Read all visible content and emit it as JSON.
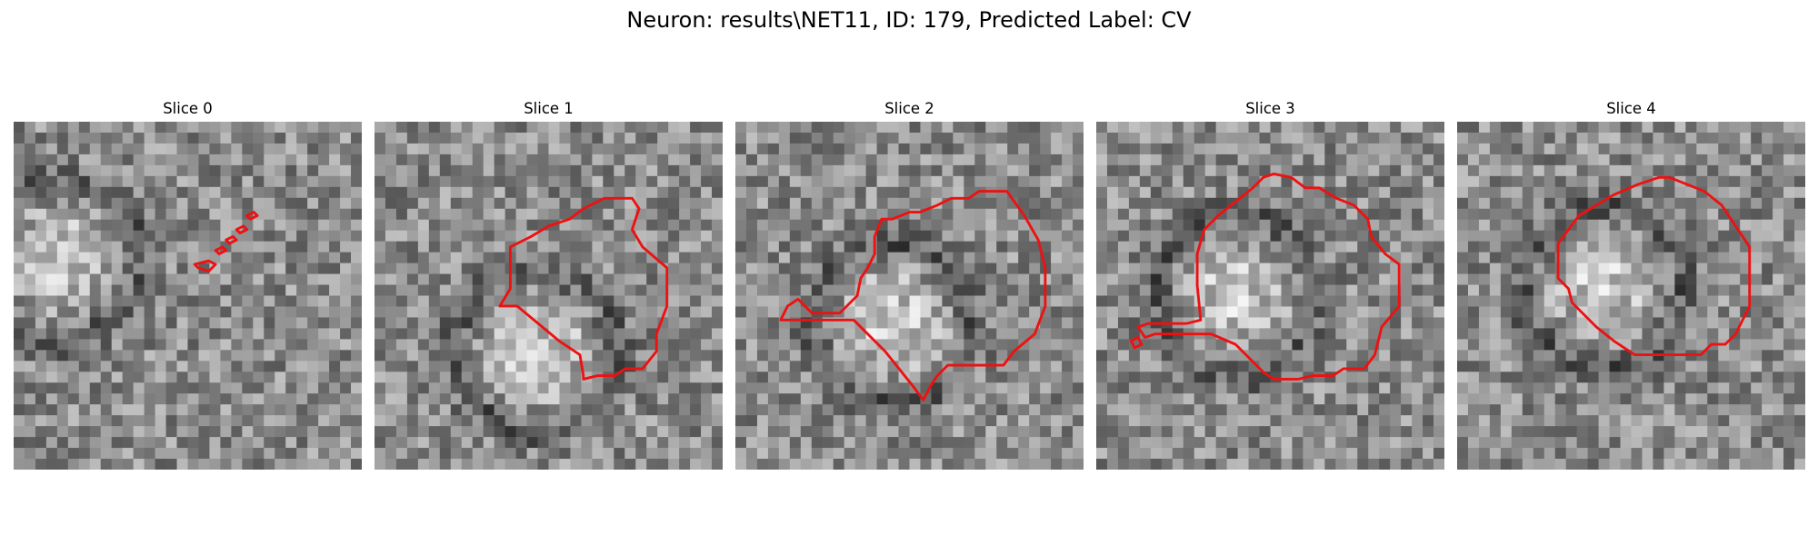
{
  "figure": {
    "title": "Neuron: results\\NET11, ID: 179, Predicted Label: CV"
  },
  "contour_color": "#ee1111",
  "panels": [
    {
      "title": "Slice 0",
      "seed": 11,
      "bright_center": [
        0.13,
        0.4
      ],
      "contours": [
        [
          [
            0.52,
            0.41
          ],
          [
            0.56,
            0.4
          ],
          [
            0.58,
            0.41
          ],
          [
            0.56,
            0.43
          ],
          [
            0.53,
            0.42
          ]
        ],
        [
          [
            0.58,
            0.37
          ],
          [
            0.6,
            0.36
          ],
          [
            0.61,
            0.37
          ],
          [
            0.59,
            0.38
          ]
        ],
        [
          [
            0.61,
            0.34
          ],
          [
            0.63,
            0.33
          ],
          [
            0.64,
            0.34
          ],
          [
            0.62,
            0.35
          ]
        ],
        [
          [
            0.64,
            0.31
          ],
          [
            0.66,
            0.3
          ],
          [
            0.67,
            0.31
          ],
          [
            0.65,
            0.32
          ]
        ],
        [
          [
            0.67,
            0.27
          ],
          [
            0.69,
            0.26
          ],
          [
            0.7,
            0.27
          ],
          [
            0.68,
            0.28
          ]
        ]
      ]
    },
    {
      "title": "Slice 1",
      "seed": 22,
      "bright_center": [
        0.47,
        0.66
      ],
      "contours": [
        [
          [
            0.39,
            0.36
          ],
          [
            0.45,
            0.33
          ],
          [
            0.5,
            0.3
          ],
          [
            0.56,
            0.28
          ],
          [
            0.6,
            0.25
          ],
          [
            0.66,
            0.22
          ],
          [
            0.74,
            0.22
          ],
          [
            0.76,
            0.25
          ],
          [
            0.74,
            0.31
          ],
          [
            0.77,
            0.36
          ],
          [
            0.84,
            0.42
          ],
          [
            0.84,
            0.53
          ],
          [
            0.81,
            0.61
          ],
          [
            0.81,
            0.66
          ],
          [
            0.77,
            0.71
          ],
          [
            0.72,
            0.71
          ],
          [
            0.69,
            0.73
          ],
          [
            0.64,
            0.73
          ],
          [
            0.6,
            0.74
          ],
          [
            0.6,
            0.73
          ],
          [
            0.59,
            0.67
          ],
          [
            0.53,
            0.63
          ],
          [
            0.47,
            0.58
          ],
          [
            0.41,
            0.53
          ],
          [
            0.39,
            0.53
          ],
          [
            0.36,
            0.53
          ],
          [
            0.39,
            0.48
          ],
          [
            0.39,
            0.4
          ]
        ]
      ]
    },
    {
      "title": "Slice 2",
      "seed": 33,
      "bright_center": [
        0.45,
        0.58
      ],
      "contours": [
        [
          [
            0.4,
            0.33
          ],
          [
            0.42,
            0.28
          ],
          [
            0.45,
            0.28
          ],
          [
            0.5,
            0.26
          ],
          [
            0.53,
            0.26
          ],
          [
            0.58,
            0.24
          ],
          [
            0.62,
            0.22
          ],
          [
            0.67,
            0.22
          ],
          [
            0.7,
            0.2
          ],
          [
            0.78,
            0.2
          ],
          [
            0.83,
            0.27
          ],
          [
            0.87,
            0.34
          ],
          [
            0.89,
            0.42
          ],
          [
            0.89,
            0.53
          ],
          [
            0.86,
            0.61
          ],
          [
            0.8,
            0.66
          ],
          [
            0.77,
            0.7
          ],
          [
            0.66,
            0.7
          ],
          [
            0.61,
            0.7
          ],
          [
            0.58,
            0.73
          ],
          [
            0.56,
            0.76
          ],
          [
            0.54,
            0.8
          ],
          [
            0.51,
            0.76
          ],
          [
            0.43,
            0.66
          ],
          [
            0.34,
            0.57
          ],
          [
            0.13,
            0.57
          ],
          [
            0.15,
            0.53
          ],
          [
            0.18,
            0.51
          ],
          [
            0.22,
            0.55
          ],
          [
            0.3,
            0.55
          ],
          [
            0.35,
            0.5
          ],
          [
            0.36,
            0.45
          ],
          [
            0.38,
            0.42
          ],
          [
            0.4,
            0.38
          ]
        ]
      ]
    },
    {
      "title": "Slice 3",
      "seed": 44,
      "bright_center": [
        0.4,
        0.5
      ],
      "contours": [
        [
          [
            0.29,
            0.38
          ],
          [
            0.31,
            0.31
          ],
          [
            0.35,
            0.27
          ],
          [
            0.4,
            0.23
          ],
          [
            0.45,
            0.19
          ],
          [
            0.48,
            0.16
          ],
          [
            0.51,
            0.15
          ],
          [
            0.56,
            0.16
          ],
          [
            0.6,
            0.19
          ],
          [
            0.64,
            0.19
          ],
          [
            0.69,
            0.22
          ],
          [
            0.74,
            0.24
          ],
          [
            0.78,
            0.28
          ],
          [
            0.79,
            0.33
          ],
          [
            0.83,
            0.38
          ],
          [
            0.87,
            0.41
          ],
          [
            0.87,
            0.53
          ],
          [
            0.82,
            0.59
          ],
          [
            0.8,
            0.67
          ],
          [
            0.77,
            0.71
          ],
          [
            0.71,
            0.71
          ],
          [
            0.68,
            0.73
          ],
          [
            0.62,
            0.73
          ],
          [
            0.58,
            0.74
          ],
          [
            0.51,
            0.74
          ],
          [
            0.48,
            0.72
          ],
          [
            0.4,
            0.64
          ],
          [
            0.33,
            0.61
          ],
          [
            0.27,
            0.61
          ],
          [
            0.17,
            0.61
          ],
          [
            0.14,
            0.62
          ],
          [
            0.12,
            0.59
          ],
          [
            0.15,
            0.58
          ],
          [
            0.26,
            0.58
          ],
          [
            0.3,
            0.57
          ],
          [
            0.29,
            0.47
          ],
          [
            0.29,
            0.42
          ]
        ],
        [
          [
            0.1,
            0.63
          ],
          [
            0.12,
            0.62
          ],
          [
            0.13,
            0.64
          ],
          [
            0.11,
            0.65
          ]
        ]
      ]
    },
    {
      "title": "Slice 4",
      "seed": 55,
      "bright_center": [
        0.42,
        0.48
      ],
      "contours": [
        [
          [
            0.29,
            0.35
          ],
          [
            0.35,
            0.27
          ],
          [
            0.4,
            0.24
          ],
          [
            0.45,
            0.21
          ],
          [
            0.52,
            0.18
          ],
          [
            0.58,
            0.16
          ],
          [
            0.61,
            0.16
          ],
          [
            0.66,
            0.18
          ],
          [
            0.71,
            0.2
          ],
          [
            0.76,
            0.24
          ],
          [
            0.8,
            0.3
          ],
          [
            0.84,
            0.36
          ],
          [
            0.84,
            0.53
          ],
          [
            0.8,
            0.61
          ],
          [
            0.77,
            0.64
          ],
          [
            0.73,
            0.64
          ],
          [
            0.7,
            0.67
          ],
          [
            0.66,
            0.67
          ],
          [
            0.51,
            0.67
          ],
          [
            0.45,
            0.63
          ],
          [
            0.4,
            0.59
          ],
          [
            0.33,
            0.52
          ],
          [
            0.32,
            0.48
          ],
          [
            0.29,
            0.45
          ]
        ]
      ]
    }
  ]
}
